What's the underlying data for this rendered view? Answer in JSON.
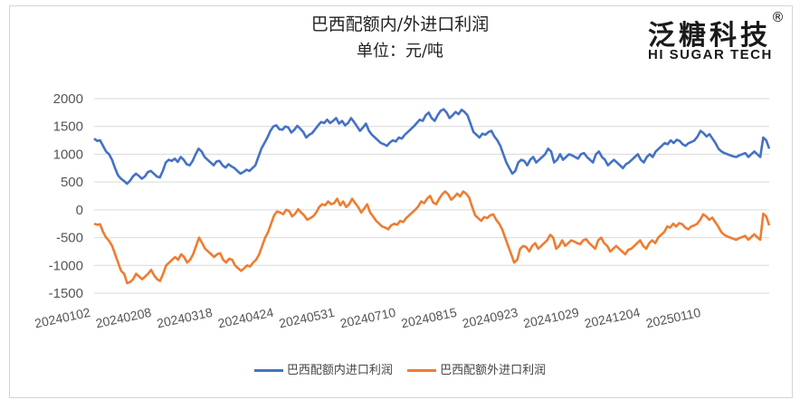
{
  "chart_data": {
    "type": "line",
    "title": "巴西配额内/外进口利润",
    "subtitle": "单位：元/吨",
    "ylim": [
      -1500,
      2000
    ],
    "yticks": [
      2000,
      1500,
      1000,
      500,
      0,
      -500,
      -1000,
      -1500
    ],
    "x_tick_labels": [
      "20240102",
      "20240208",
      "20240318",
      "20240424",
      "20240531",
      "20240710",
      "20240815",
      "20240923",
      "20241029",
      "20241204",
      "20250110"
    ],
    "legend_position": "bottom",
    "colors": {
      "in_quota": "#4472c4",
      "out_quota": "#ed7d31"
    },
    "series": [
      {
        "name": "巴西配额内进口利润",
        "values": [
          1280,
          1240,
          1250,
          1150,
          1050,
          1000,
          900,
          750,
          620,
          560,
          520,
          470,
          520,
          600,
          650,
          610,
          560,
          600,
          680,
          700,
          650,
          600,
          580,
          700,
          850,
          900,
          880,
          920,
          860,
          950,
          900,
          820,
          800,
          880,
          1000,
          1100,
          1050,
          950,
          900,
          850,
          800,
          870,
          880,
          800,
          760,
          820,
          780,
          750,
          700,
          650,
          680,
          720,
          700,
          750,
          800,
          950,
          1100,
          1200,
          1300,
          1420,
          1500,
          1520,
          1450,
          1440,
          1500,
          1480,
          1390,
          1440,
          1510,
          1460,
          1400,
          1300,
          1350,
          1380,
          1450,
          1520,
          1580,
          1560,
          1620,
          1560,
          1600,
          1650,
          1550,
          1600,
          1520,
          1560,
          1650,
          1580,
          1500,
          1420,
          1480,
          1550,
          1420,
          1350,
          1300,
          1250,
          1200,
          1180,
          1150,
          1210,
          1250,
          1230,
          1300,
          1280,
          1350,
          1400,
          1450,
          1500,
          1560,
          1620,
          1600,
          1700,
          1750,
          1650,
          1600,
          1700,
          1780,
          1810,
          1750,
          1650,
          1700,
          1760,
          1720,
          1800,
          1760,
          1700,
          1550,
          1400,
          1350,
          1300,
          1370,
          1350,
          1400,
          1420,
          1320,
          1250,
          1150,
          1000,
          850,
          750,
          650,
          700,
          850,
          900,
          880,
          800,
          900,
          950,
          850,
          900,
          950,
          1000,
          1100,
          1050,
          850,
          900,
          1000,
          900,
          950,
          1000,
          980,
          950,
          920,
          1000,
          1020,
          950,
          900,
          850,
          1000,
          1050,
          950,
          900,
          800,
          850,
          900,
          850,
          800,
          750,
          820,
          850,
          900,
          950,
          1000,
          900,
          850,
          950,
          1000,
          950,
          1050,
          1100,
          1150,
          1200,
          1180,
          1250,
          1200,
          1260,
          1240,
          1180,
          1150,
          1200,
          1220,
          1250,
          1320,
          1420,
          1380,
          1320,
          1360,
          1280,
          1200,
          1100,
          1050,
          1020,
          1000,
          980,
          960,
          950,
          980,
          1000,
          1020,
          950,
          1000,
          1050,
          1000,
          950,
          1300,
          1250,
          1100
        ]
      },
      {
        "name": "巴西配额外进口利润",
        "values": [
          -250,
          -270,
          -260,
          -400,
          -500,
          -560,
          -650,
          -800,
          -950,
          -1100,
          -1150,
          -1320,
          -1300,
          -1250,
          -1150,
          -1200,
          -1250,
          -1200,
          -1150,
          -1080,
          -1180,
          -1250,
          -1280,
          -1150,
          -1000,
          -950,
          -900,
          -850,
          -900,
          -800,
          -850,
          -950,
          -900,
          -800,
          -650,
          -500,
          -600,
          -700,
          -750,
          -800,
          -850,
          -800,
          -780,
          -900,
          -950,
          -880,
          -900,
          -1000,
          -1050,
          -1100,
          -1050,
          -1000,
          -1020,
          -950,
          -900,
          -800,
          -650,
          -500,
          -400,
          -250,
          -100,
          -30,
          -50,
          -80,
          0,
          -20,
          -120,
          -70,
          10,
          -50,
          -100,
          -180,
          -150,
          -120,
          -50,
          50,
          100,
          80,
          150,
          100,
          120,
          200,
          80,
          150,
          50,
          100,
          200,
          120,
          50,
          -50,
          20,
          100,
          -50,
          -120,
          -200,
          -250,
          -300,
          -320,
          -350,
          -280,
          -250,
          -270,
          -200,
          -220,
          -150,
          -100,
          -50,
          0,
          60,
          150,
          120,
          200,
          250,
          130,
          100,
          200,
          280,
          330,
          280,
          180,
          230,
          290,
          240,
          330,
          290,
          220,
          50,
          -100,
          -150,
          -200,
          -130,
          -150,
          -100,
          -80,
          -180,
          -250,
          -350,
          -500,
          -650,
          -800,
          -950,
          -900,
          -700,
          -650,
          -670,
          -750,
          -650,
          -600,
          -700,
          -650,
          -600,
          -550,
          -450,
          -500,
          -700,
          -650,
          -550,
          -650,
          -600,
          -550,
          -570,
          -600,
          -620,
          -550,
          -530,
          -600,
          -650,
          -700,
          -550,
          -500,
          -600,
          -650,
          -750,
          -700,
          -650,
          -700,
          -750,
          -800,
          -720,
          -700,
          -650,
          -600,
          -550,
          -650,
          -700,
          -600,
          -550,
          -600,
          -500,
          -450,
          -400,
          -300,
          -320,
          -250,
          -300,
          -240,
          -260,
          -320,
          -350,
          -300,
          -280,
          -250,
          -180,
          -80,
          -120,
          -180,
          -140,
          -220,
          -300,
          -400,
          -450,
          -480,
          -500,
          -520,
          -540,
          -510,
          -490,
          -470,
          -540,
          -490,
          -440,
          -490,
          -540,
          -70,
          -120,
          -280
        ]
      }
    ]
  },
  "branding": {
    "logo_cn": "泛糖科技",
    "logo_en": "HI SUGAR TECH",
    "logo_mark": "®"
  }
}
